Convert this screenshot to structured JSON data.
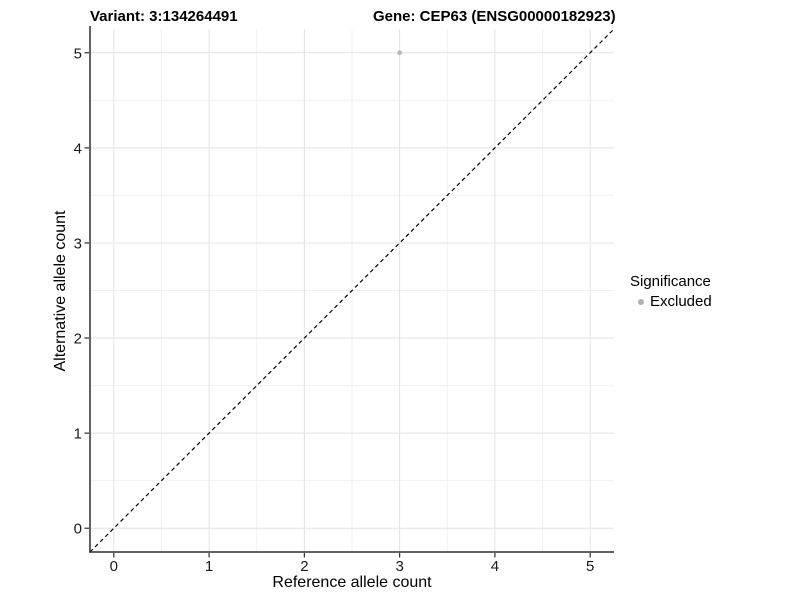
{
  "chart_data": {
    "type": "scatter",
    "titles": {
      "left": "Variant: 3:134264491",
      "right": "Gene: CEP63 (ENSG00000182923)"
    },
    "xlabel": "Reference allele count",
    "ylabel": "Alternative allele count",
    "xlim": [
      -0.25,
      5.25
    ],
    "ylim": [
      -0.25,
      5.25
    ],
    "xticks": [
      0,
      1,
      2,
      3,
      4,
      5
    ],
    "yticks": [
      0,
      1,
      2,
      3,
      4,
      5
    ],
    "minor_grid_step": 0.5,
    "grid": "major and minor gridlines, light gray on white panel",
    "identity_line": {
      "style": "dashed",
      "from": [
        -0.25,
        -0.25
      ],
      "to": [
        5.25,
        5.25
      ],
      "color": "#000000"
    },
    "series": [
      {
        "name": "Excluded",
        "color": "#b5b5b5",
        "points": [
          [
            3,
            5
          ]
        ],
        "point_radius": 2.3
      }
    ],
    "legend": {
      "title": "Significance",
      "position": "right-middle",
      "items": [
        {
          "label": "Excluded",
          "color": "#b0b0b0",
          "marker": "circle"
        }
      ]
    }
  },
  "colors": {
    "grid_major": "#e3e3e3",
    "grid_minor": "#f0f0f0",
    "axis": "#2f2f2f",
    "tick_text": "#1a1a1a",
    "title_text": "#000000",
    "background": "#ffffff"
  }
}
